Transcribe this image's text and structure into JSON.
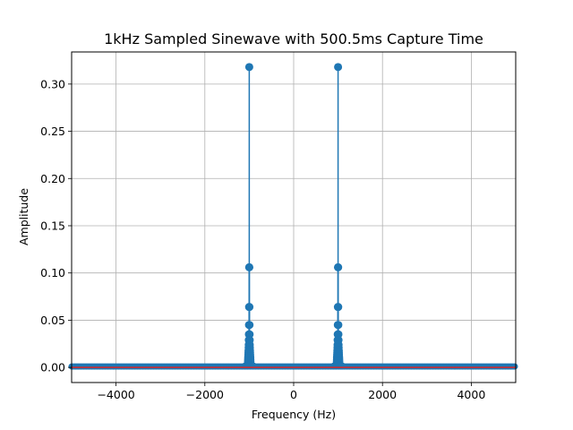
{
  "chart_data": {
    "type": "stem",
    "title": "1kHz Sampled Sinewave with 500.5ms Capture Time",
    "xlabel": "Frequency (Hz)",
    "ylabel": "Amplitude",
    "xlim": [
      -5000,
      5000
    ],
    "ylim": [
      -0.016,
      0.334
    ],
    "xticks": [
      -4000,
      -2000,
      0,
      2000,
      4000
    ],
    "xtick_labels": [
      "−4000",
      "−2000",
      "0",
      "2000",
      "4000"
    ],
    "yticks": [
      0.0,
      0.05,
      0.1,
      0.15,
      0.2,
      0.25,
      0.3
    ],
    "ytick_labels": [
      "0.00",
      "0.05",
      "0.10",
      "0.15",
      "0.20",
      "0.25",
      "0.30"
    ],
    "grid": true,
    "series_color": "#1f77b4",
    "baseline_color": "#d62728",
    "peaks": [
      {
        "x": -1000,
        "values": [
          0.318,
          0.106,
          0.064,
          0.045,
          0.035,
          0.029,
          0.024,
          0.021,
          0.018,
          0.016,
          0.014,
          0.012,
          0.01,
          0.008,
          0.006,
          0.004
        ]
      },
      {
        "x": 1000,
        "values": [
          0.318,
          0.106,
          0.064,
          0.045,
          0.035,
          0.029,
          0.024,
          0.021,
          0.018,
          0.016,
          0.014,
          0.012,
          0.01,
          0.008,
          0.006,
          0.004
        ]
      }
    ],
    "noise_floor_level": 0.001,
    "bin_spacing_hz": 2
  }
}
